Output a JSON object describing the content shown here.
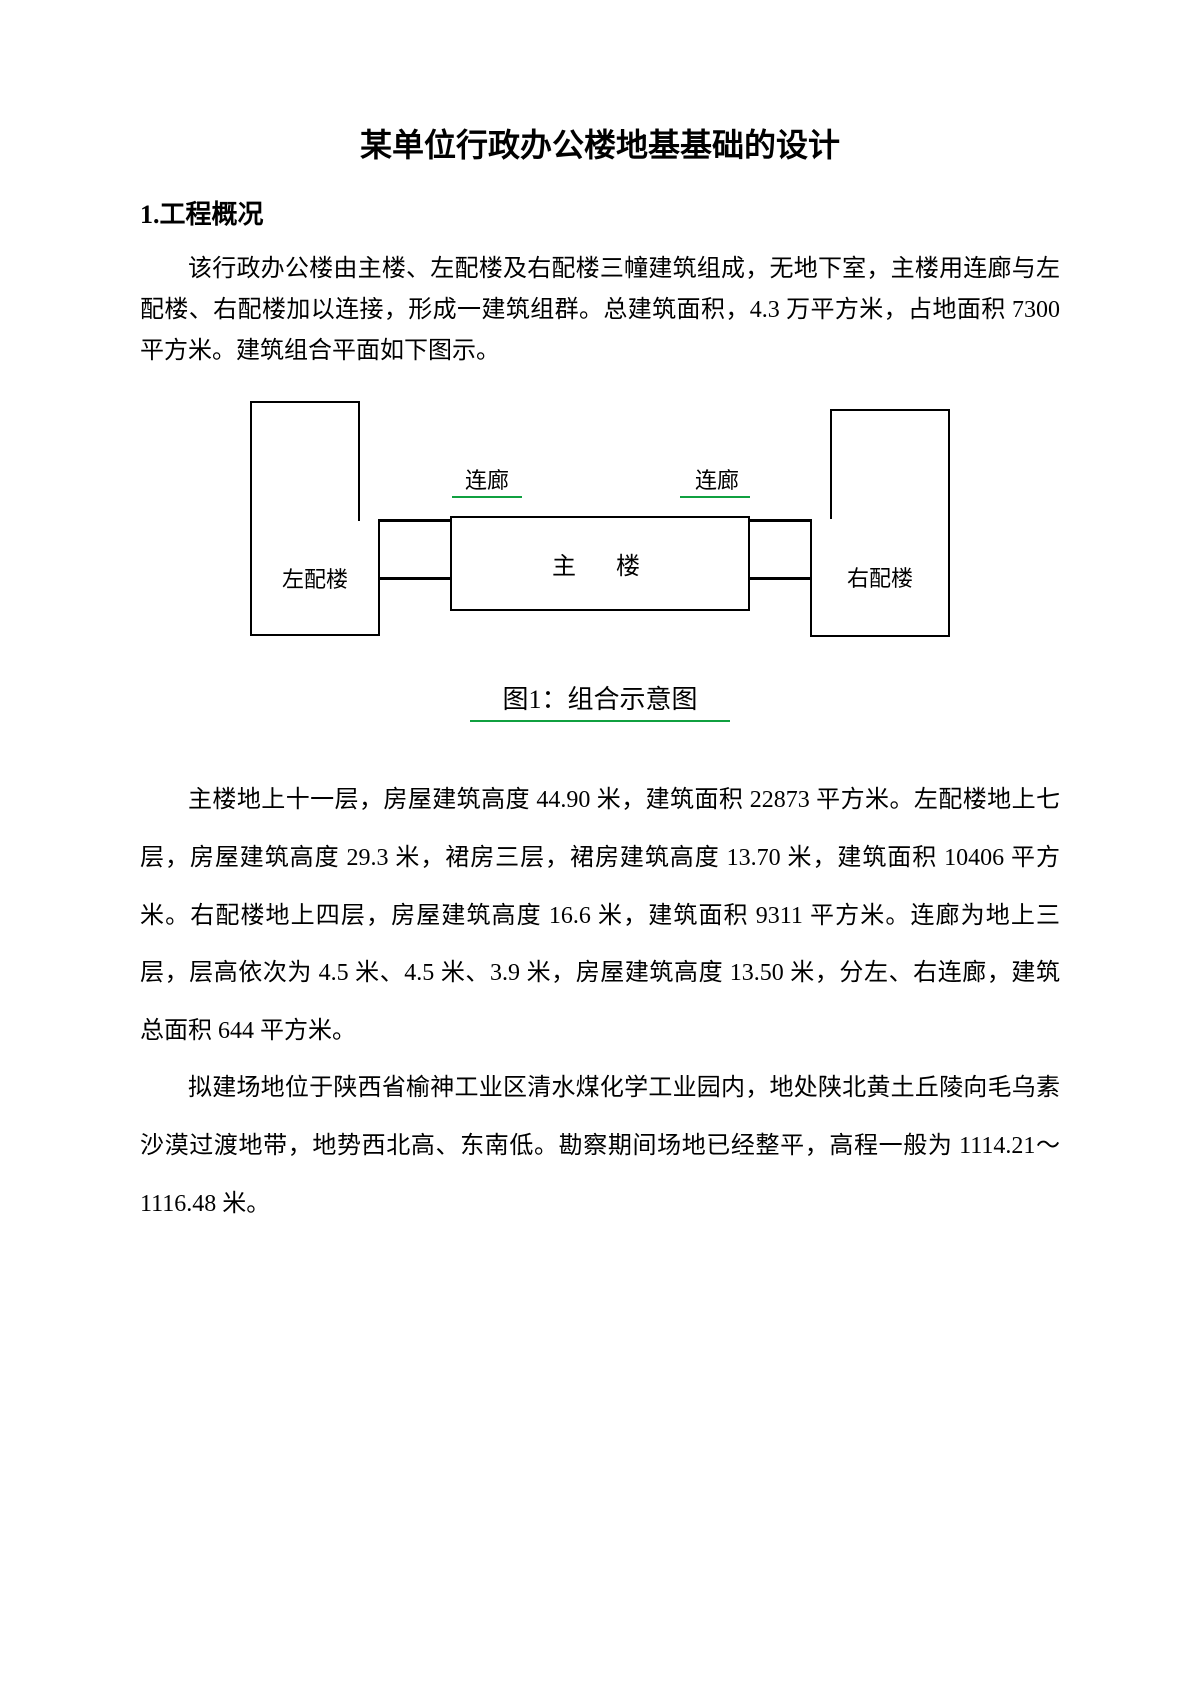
{
  "title": "某单位行政办公楼地基基础的设计",
  "section1": {
    "num": "1.",
    "heading": "工程概况"
  },
  "intro": "该行政办公楼由主楼、左配楼及右配楼三幢建筑组成，无地下室，主楼用连廊与左配楼、右配楼加以连接，形成一建筑组群。总建筑面积，4.3 万平方米，占地面积 7300 平方米。建筑组合平面如下图示。",
  "diagram": {
    "left_label": "左配楼",
    "right_label": "右配楼",
    "main_label": "主　楼",
    "corridor_label": "连廊",
    "caption": "图1：组合示意图",
    "border_color": "#000000",
    "underline_color": "#10a040"
  },
  "para2": "主楼地上十一层，房屋建筑高度 44.90 米，建筑面积 22873 平方米。左配楼地上七层，房屋建筑高度 29.3 米，裙房三层，裙房建筑高度 13.70 米，建筑面积 10406 平方米。右配楼地上四层，房屋建筑高度 16.6 米，建筑面积 9311 平方米。连廊为地上三层，层高依次为 4.5 米、4.5 米、3.9 米，房屋建筑高度 13.50 米，分左、右连廊，建筑总面积 644 平方米。",
  "para3": "拟建场地位于陕西省榆神工业区清水煤化学工业园内，地处陕北黄土丘陵向毛乌素沙漠过渡地带，地势西北高、东南低。勘察期间场地已经整平，高程一般为 1114.21～1116.48 米。"
}
